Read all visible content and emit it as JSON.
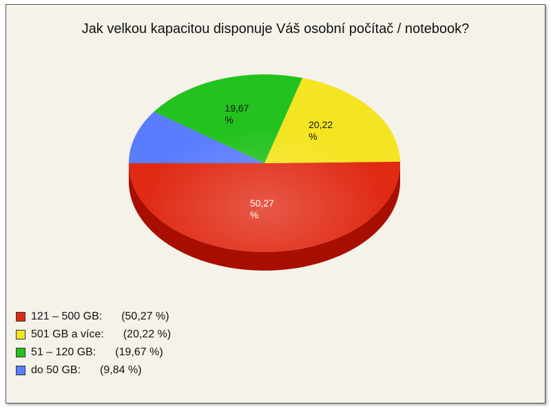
{
  "chart_data": {
    "type": "pie",
    "title": "Jak velkou kapacitou disponuje Váš osobní počítač / notebook?",
    "slices": [
      {
        "label": "121 – 500 GB:",
        "value": 50.27,
        "display": "50,27",
        "legend_pct": "(50,27 %)",
        "color": "#e02a14",
        "side_color": "#a80f00",
        "label_color": "#ffffff"
      },
      {
        "label": "501 GB a více:",
        "value": 20.22,
        "display": "20,22",
        "legend_pct": "(20,22 %)",
        "color": "#f5e421",
        "side_color": "#bfae00",
        "label_color": "#111111"
      },
      {
        "label": "51 – 120 GB:",
        "value": 19.67,
        "display": "19,67",
        "legend_pct": "(19,67 %)",
        "color": "#23c21f",
        "side_color": "#128a10",
        "label_color": "#111111"
      },
      {
        "label": "do 50 GB:",
        "value": 9.84,
        "display": "",
        "legend_pct": "(9,84 %)",
        "color": "#5a7dff",
        "side_color": "#3450c0",
        "label_color": "#111111"
      }
    ],
    "pct_symbol": "%",
    "legend_placement": "bottom-left"
  }
}
